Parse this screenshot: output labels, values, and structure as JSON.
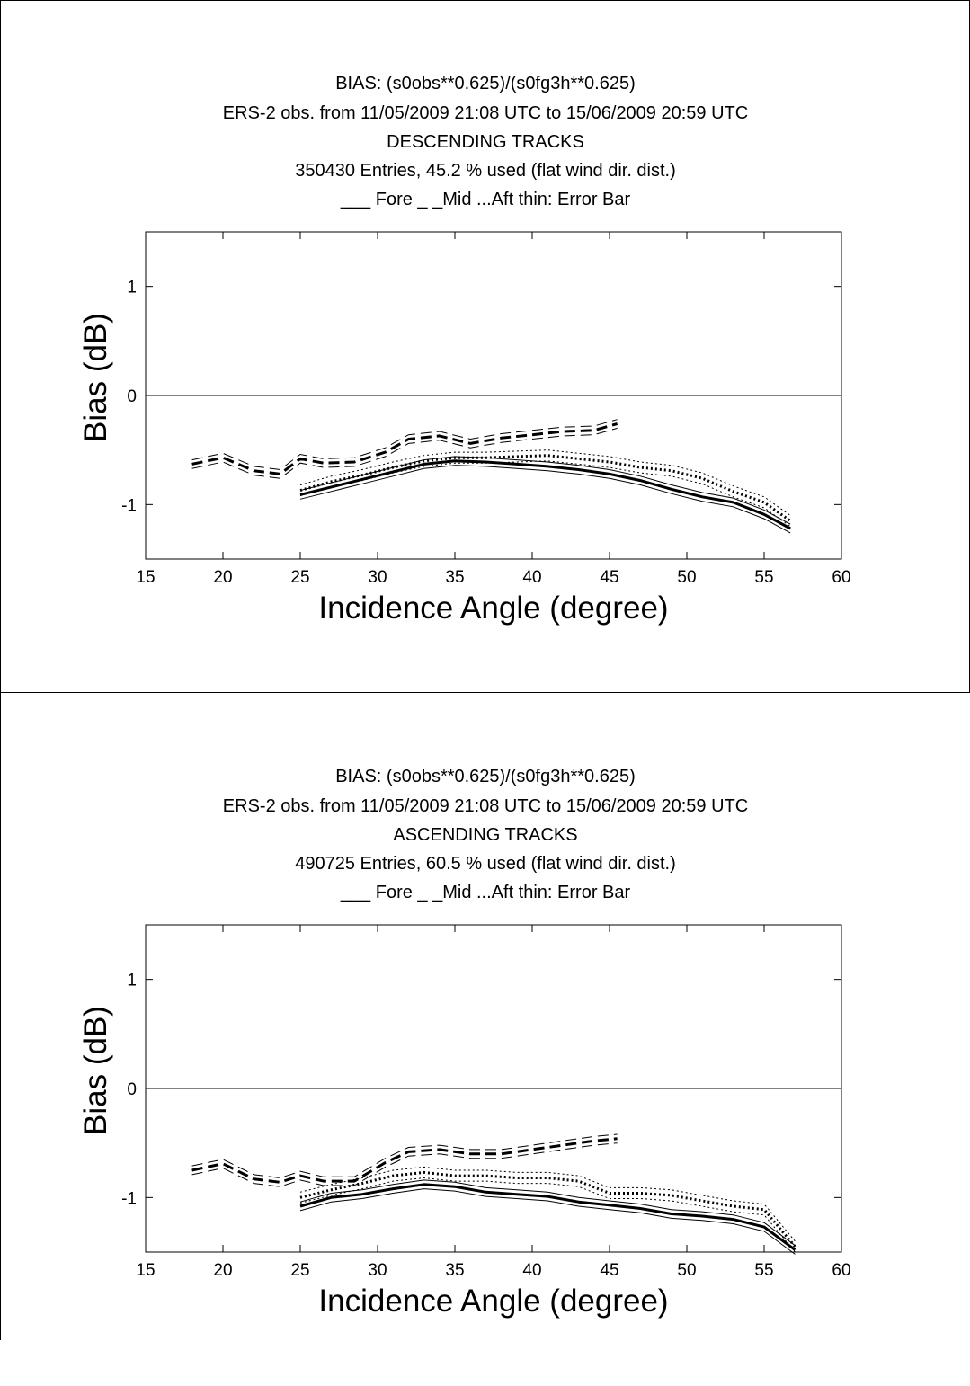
{
  "chart_data": [
    {
      "type": "line",
      "titles": [
        "BIAS: (s0obs**0.625)/(s0fg3h**0.625)",
        "ERS-2 obs. from 11/05/2009  21:08 UTC to 15/06/2009  20:59 UTC",
        "DESCENDING TRACKS",
        "350430 Entries,   45.2 % used (flat wind dir. dist.)",
        "___ Fore _ _Mid ...Aft  thin: Error Bar"
      ],
      "xlabel": "Incidence Angle (degree)",
      "ylabel": "Bias  (dB)",
      "xlim": [
        15,
        60
      ],
      "ylim": [
        -1.5,
        1.5
      ],
      "xticks": [
        15,
        20,
        25,
        30,
        35,
        40,
        45,
        50,
        55,
        60
      ],
      "yticks": [
        -1,
        0,
        1
      ],
      "grid": false,
      "series": [
        {
          "style": "solid",
          "x": [
            25,
            27,
            29,
            31,
            33,
            35,
            37,
            39,
            41,
            43,
            45,
            47,
            49,
            51,
            53,
            55,
            56.7
          ],
          "y": [
            -0.91,
            -0.84,
            -0.77,
            -0.7,
            -0.63,
            -0.6,
            -0.61,
            -0.63,
            -0.65,
            -0.68,
            -0.72,
            -0.78,
            -0.86,
            -0.93,
            -0.98,
            -1.09,
            -1.22
          ],
          "err": 0.04
        },
        {
          "style": "dashed",
          "x": [
            18,
            20,
            22,
            23.7,
            25,
            26.5,
            28.5,
            30.5,
            32,
            34,
            36,
            38,
            40,
            42,
            44,
            45.5
          ],
          "y": [
            -0.63,
            -0.57,
            -0.69,
            -0.72,
            -0.58,
            -0.62,
            -0.61,
            -0.52,
            -0.4,
            -0.37,
            -0.44,
            -0.39,
            -0.36,
            -0.33,
            -0.32,
            -0.26
          ],
          "err": 0.04
        },
        {
          "style": "dotted",
          "x": [
            25,
            27,
            29,
            31,
            33,
            35,
            37,
            39,
            41,
            43,
            45,
            47,
            49,
            51,
            53,
            55,
            56.7
          ],
          "y": [
            -0.87,
            -0.79,
            -0.73,
            -0.66,
            -0.6,
            -0.57,
            -0.57,
            -0.56,
            -0.55,
            -0.58,
            -0.61,
            -0.66,
            -0.69,
            -0.76,
            -0.88,
            -0.98,
            -1.15
          ],
          "err": 0.05
        }
      ]
    },
    {
      "type": "line",
      "titles": [
        "BIAS: (s0obs**0.625)/(s0fg3h**0.625)",
        "ERS-2 obs. from 11/05/2009  21:08 UTC to 15/06/2009  20:59 UTC",
        "ASCENDING TRACKS",
        "490725 Entries,   60.5 % used (flat wind dir. dist.)",
        "___ Fore _ _Mid ...Aft  thin: Error Bar"
      ],
      "xlabel": "Incidence Angle (degree)",
      "ylabel": "Bias  (dB)",
      "xlim": [
        15,
        60
      ],
      "ylim": [
        -1.5,
        1.5
      ],
      "xticks": [
        15,
        20,
        25,
        30,
        35,
        40,
        45,
        50,
        55,
        60
      ],
      "yticks": [
        -1,
        0,
        1
      ],
      "grid": false,
      "series": [
        {
          "style": "solid",
          "x": [
            25,
            27,
            29,
            31,
            33,
            35,
            37,
            39,
            41,
            43,
            45,
            47,
            49,
            51,
            53,
            55,
            57
          ],
          "y": [
            -1.08,
            -1.0,
            -0.97,
            -0.92,
            -0.88,
            -0.9,
            -0.95,
            -0.97,
            -0.99,
            -1.04,
            -1.07,
            -1.1,
            -1.15,
            -1.17,
            -1.2,
            -1.27,
            -1.48
          ],
          "err": 0.04
        },
        {
          "style": "dashed",
          "x": [
            18,
            20,
            22,
            23.7,
            25,
            26.5,
            28.5,
            30.5,
            32,
            34,
            36,
            38,
            40,
            42,
            44,
            45.5
          ],
          "y": [
            -0.75,
            -0.69,
            -0.83,
            -0.86,
            -0.8,
            -0.85,
            -0.85,
            -0.68,
            -0.58,
            -0.56,
            -0.6,
            -0.6,
            -0.56,
            -0.52,
            -0.48,
            -0.46
          ],
          "err": 0.04
        },
        {
          "style": "dotted",
          "x": [
            25,
            27,
            29,
            31,
            33,
            35,
            37,
            39,
            41,
            43,
            45,
            47,
            49,
            51,
            53,
            55,
            57
          ],
          "y": [
            -1.0,
            -0.93,
            -0.87,
            -0.8,
            -0.77,
            -0.8,
            -0.8,
            -0.82,
            -0.82,
            -0.85,
            -0.96,
            -0.96,
            -0.98,
            -1.03,
            -1.08,
            -1.11,
            -1.45
          ],
          "err": 0.05
        }
      ]
    }
  ]
}
